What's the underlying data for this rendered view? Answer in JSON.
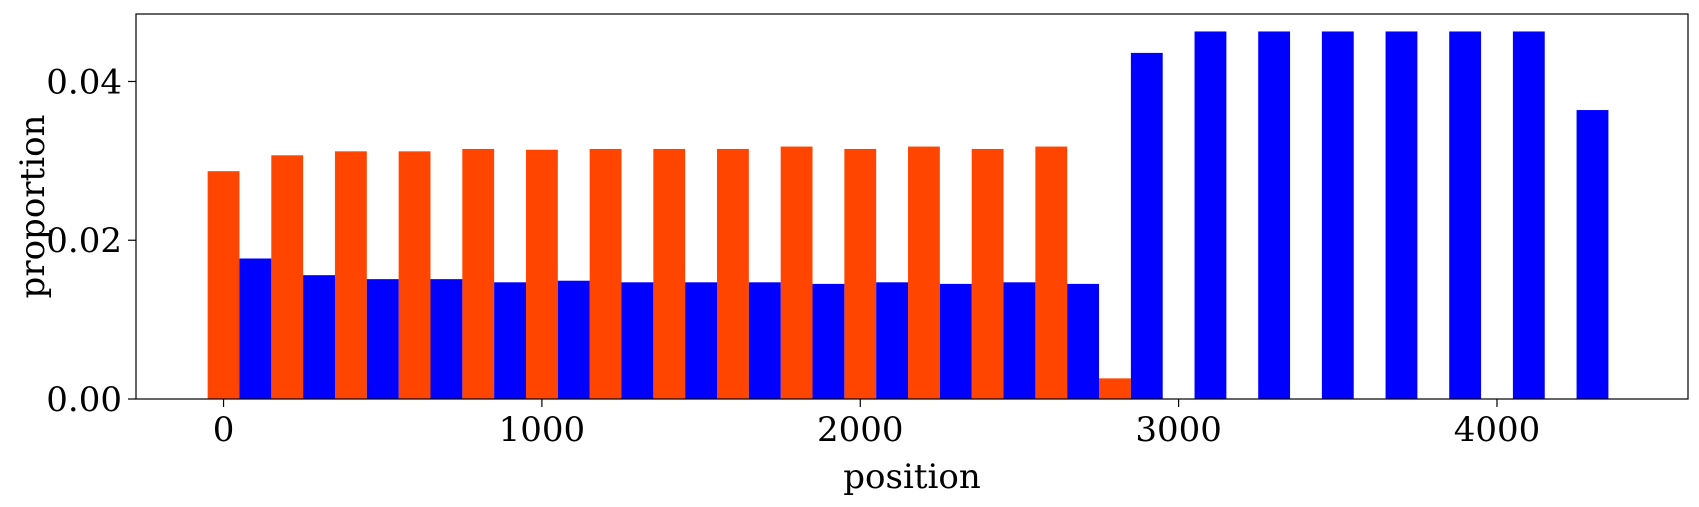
{
  "chart_data": {
    "type": "bar",
    "xlabel": "position",
    "ylabel": "proportion",
    "xlim": [
      -275,
      4600
    ],
    "ylim": [
      0,
      0.0485
    ],
    "xticks": [
      0,
      1000,
      2000,
      3000,
      4000
    ],
    "yticks": [
      0.0,
      0.02,
      0.04
    ],
    "xtick_labels": [
      "0",
      "1000",
      "2000",
      "3000",
      "4000"
    ],
    "ytick_labels": [
      "0.00",
      "0.02",
      "0.04"
    ],
    "bar_width": 100,
    "grid": false,
    "series": [
      {
        "color": "#FF4500",
        "points": [
          {
            "x": 0,
            "y": 0.0287
          },
          {
            "x": 200,
            "y": 0.0307
          },
          {
            "x": 400,
            "y": 0.0312
          },
          {
            "x": 600,
            "y": 0.0312
          },
          {
            "x": 800,
            "y": 0.0315
          },
          {
            "x": 1000,
            "y": 0.0314
          },
          {
            "x": 1200,
            "y": 0.0315
          },
          {
            "x": 1400,
            "y": 0.0315
          },
          {
            "x": 1600,
            "y": 0.0315
          },
          {
            "x": 1800,
            "y": 0.0318
          },
          {
            "x": 2000,
            "y": 0.0315
          },
          {
            "x": 2200,
            "y": 0.0318
          },
          {
            "x": 2400,
            "y": 0.0315
          },
          {
            "x": 2600,
            "y": 0.0318
          },
          {
            "x": 2800,
            "y": 0.0026
          }
        ]
      },
      {
        "color": "#0000FF",
        "points": [
          {
            "x": 100,
            "y": 0.0177
          },
          {
            "x": 300,
            "y": 0.0156
          },
          {
            "x": 500,
            "y": 0.0151
          },
          {
            "x": 700,
            "y": 0.0151
          },
          {
            "x": 900,
            "y": 0.0147
          },
          {
            "x": 1100,
            "y": 0.0149
          },
          {
            "x": 1300,
            "y": 0.0147
          },
          {
            "x": 1500,
            "y": 0.0147
          },
          {
            "x": 1700,
            "y": 0.0147
          },
          {
            "x": 1900,
            "y": 0.0145
          },
          {
            "x": 2100,
            "y": 0.0147
          },
          {
            "x": 2300,
            "y": 0.0145
          },
          {
            "x": 2500,
            "y": 0.0147
          },
          {
            "x": 2700,
            "y": 0.0145
          },
          {
            "x": 2900,
            "y": 0.0436
          },
          {
            "x": 3100,
            "y": 0.0463
          },
          {
            "x": 3300,
            "y": 0.0463
          },
          {
            "x": 3500,
            "y": 0.0463
          },
          {
            "x": 3700,
            "y": 0.0463
          },
          {
            "x": 3900,
            "y": 0.0463
          },
          {
            "x": 4100,
            "y": 0.0463
          },
          {
            "x": 4300,
            "y": 0.0364
          }
        ]
      }
    ]
  }
}
